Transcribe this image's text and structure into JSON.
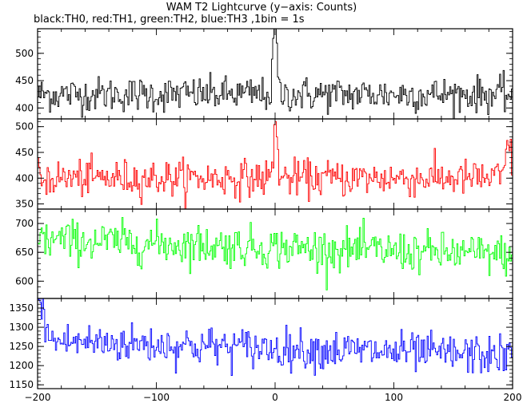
{
  "title": "WAM T2 Lightcurve (y−axis: Counts)",
  "subtitle": "black:TH0, red:TH1, green:TH2, blue:TH3 ,1bin = 1s",
  "chart_data": {
    "type": "line",
    "layout": "stacked panels sharing x-axis",
    "xlim": [
      -200,
      200
    ],
    "xticks": [
      -200,
      -100,
      0,
      100,
      200
    ],
    "xtick_labels": [
      "−200",
      "−100",
      "0",
      "100",
      "200"
    ],
    "bin_seconds": 1,
    "panels": [
      {
        "name": "TH0",
        "color": "#000000",
        "ylim": [
          380,
          545
        ],
        "yticks": [
          400,
          450,
          500
        ],
        "yticks_labels": [
          "400",
          "450",
          "500"
        ],
        "mean": 425,
        "noise": 20,
        "features": [
          {
            "x": 0,
            "peak": 545,
            "width": 1.2
          },
          {
            "x": -1.5,
            "peak": 500,
            "width": 1
          }
        ]
      },
      {
        "name": "TH1",
        "color": "#ff0000",
        "ylim": [
          340,
          515
        ],
        "yticks": [
          350,
          400,
          450,
          500
        ],
        "yticks_labels": [
          "350",
          "400",
          "450",
          "500"
        ],
        "mean": 400,
        "noise": 22,
        "features": [
          {
            "x": 0,
            "peak": 510,
            "width": 1.5
          },
          {
            "x": 196,
            "peak": 470,
            "width": 2
          }
        ]
      },
      {
        "name": "TH2",
        "color": "#00ff00",
        "ylim": [
          570,
          725
        ],
        "yticks": [
          600,
          650,
          700
        ],
        "yticks_labels": [
          "600",
          "650",
          "700"
        ],
        "mean": 655,
        "noise": 22,
        "trend": {
          "start": 672,
          "end": 645
        },
        "features": []
      },
      {
        "name": "TH3",
        "color": "#0000ff",
        "ylim": [
          1140,
          1375
        ],
        "yticks": [
          1150,
          1200,
          1250,
          1300,
          1350
        ],
        "yticks_labels": [
          "1150",
          "1200",
          "1250",
          "1300",
          "1350"
        ],
        "mean": 1235,
        "noise": 32,
        "trend": {
          "start": 1265,
          "end": 1225
        },
        "features": [
          {
            "x": -198,
            "peak": 1370,
            "width": 3
          }
        ]
      }
    ]
  }
}
